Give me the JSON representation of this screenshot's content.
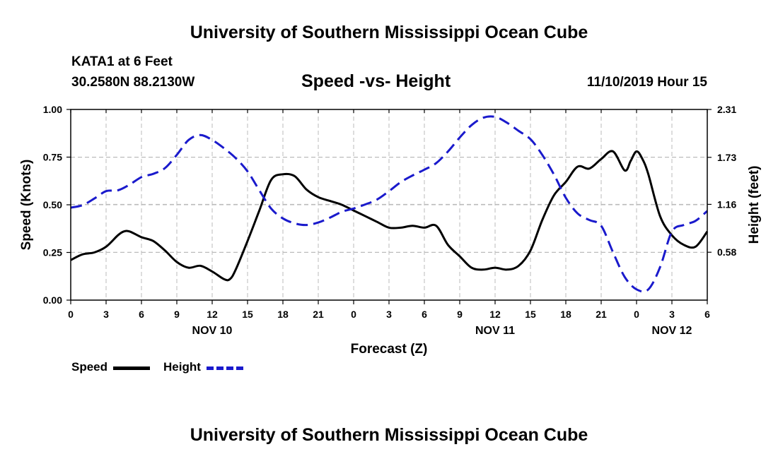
{
  "header": {
    "title_top": "University of Southern Mississippi Ocean Cube",
    "station": "KATA1 at 6 Feet",
    "coords": "30.2580N 88.2130W",
    "datetime": "11/10/2019 Hour 15",
    "title_bottom": "University of Southern Mississippi Ocean Cube"
  },
  "legend": {
    "speed_label": "Speed",
    "height_label": "Height"
  },
  "colors": {
    "speed": "#000000",
    "height": "#1a1acc",
    "grid": "#bbbbbb"
  },
  "chart_data": {
    "type": "line",
    "title": "Speed -vs- Height",
    "xlabel": "Forecast (Z)",
    "ylabel": "Speed (Knots)",
    "ylabel_right": "Height (feet)",
    "x_unit": "hours from NOV 10 00Z",
    "xlim": [
      0,
      54
    ],
    "ylim": [
      0,
      1
    ],
    "ylim_right": [
      0,
      2.31
    ],
    "x_ticks": [
      0,
      3,
      6,
      9,
      12,
      15,
      18,
      21,
      24,
      27,
      30,
      33,
      36,
      39,
      42,
      45,
      48,
      51,
      54
    ],
    "x_tick_labels": [
      "0",
      "3",
      "6",
      "9",
      "12",
      "15",
      "18",
      "21",
      "0",
      "3",
      "6",
      "9",
      "12",
      "15",
      "18",
      "21",
      "0",
      "3",
      "6"
    ],
    "date_labels": [
      {
        "x": 12,
        "label": "NOV 10"
      },
      {
        "x": 36,
        "label": "NOV 11"
      },
      {
        "x": 51,
        "label": "NOV 12"
      }
    ],
    "y_ticks": [
      0,
      0.25,
      0.5,
      0.75,
      1.0
    ],
    "y_tick_labels": [
      "0.00",
      "0.25",
      "0.50",
      "0.75",
      "1.00"
    ],
    "y_ticks_right": [
      0.58,
      1.16,
      1.73,
      2.31
    ],
    "y_tick_labels_right": [
      "0.58",
      "1.16",
      "1.73",
      "2.31"
    ],
    "grid": true,
    "legend_position": "bottom-left",
    "series": [
      {
        "name": "Speed",
        "axis": "left",
        "style": "solid",
        "x": [
          0,
          1,
          2,
          3,
          4,
          4.5,
          5,
          6,
          7,
          8,
          9,
          10,
          11,
          12,
          13,
          13.5,
          14,
          15,
          16,
          17,
          18,
          19,
          20,
          21,
          22,
          23,
          24,
          25,
          26,
          27,
          28,
          29,
          30,
          31,
          32,
          33,
          34,
          35,
          36,
          37,
          38,
          39,
          40,
          41,
          42,
          43,
          44,
          45,
          46,
          47,
          47.5,
          48,
          48.5,
          49,
          50,
          51,
          52,
          53,
          54
        ],
        "values": [
          0.21,
          0.24,
          0.25,
          0.28,
          0.34,
          0.36,
          0.36,
          0.33,
          0.31,
          0.26,
          0.2,
          0.17,
          0.18,
          0.15,
          0.11,
          0.11,
          0.16,
          0.31,
          0.47,
          0.63,
          0.66,
          0.65,
          0.58,
          0.54,
          0.52,
          0.5,
          0.47,
          0.44,
          0.41,
          0.38,
          0.38,
          0.39,
          0.38,
          0.39,
          0.29,
          0.23,
          0.17,
          0.16,
          0.17,
          0.16,
          0.18,
          0.26,
          0.42,
          0.55,
          0.62,
          0.7,
          0.69,
          0.74,
          0.78,
          0.68,
          0.73,
          0.78,
          0.74,
          0.66,
          0.44,
          0.34,
          0.29,
          0.28,
          0.36
        ]
      },
      {
        "name": "Height",
        "axis": "right",
        "style": "dashed",
        "x": [
          0,
          1,
          2,
          3,
          4,
          5,
          6,
          7,
          8,
          9,
          10,
          11,
          12,
          13,
          14,
          15,
          16,
          17,
          18,
          19,
          20,
          21,
          22,
          23,
          24,
          25,
          26,
          27,
          28,
          29,
          30,
          31,
          32,
          33,
          34,
          35,
          36,
          37,
          38,
          39,
          40,
          41,
          42,
          43,
          44,
          45,
          46,
          47,
          48,
          49,
          50,
          51,
          52,
          53,
          54
        ],
        "values": [
          1.12,
          1.15,
          1.23,
          1.32,
          1.33,
          1.4,
          1.49,
          1.53,
          1.6,
          1.76,
          1.94,
          2.0,
          1.94,
          1.84,
          1.72,
          1.56,
          1.33,
          1.11,
          0.99,
          0.93,
          0.91,
          0.94,
          1.0,
          1.07,
          1.11,
          1.16,
          1.22,
          1.32,
          1.43,
          1.51,
          1.58,
          1.66,
          1.8,
          1.97,
          2.12,
          2.21,
          2.22,
          2.15,
          2.05,
          1.95,
          1.76,
          1.52,
          1.24,
          1.05,
          0.97,
          0.9,
          0.58,
          0.28,
          0.13,
          0.13,
          0.4,
          0.83,
          0.91,
          0.96,
          1.08
        ]
      }
    ]
  }
}
